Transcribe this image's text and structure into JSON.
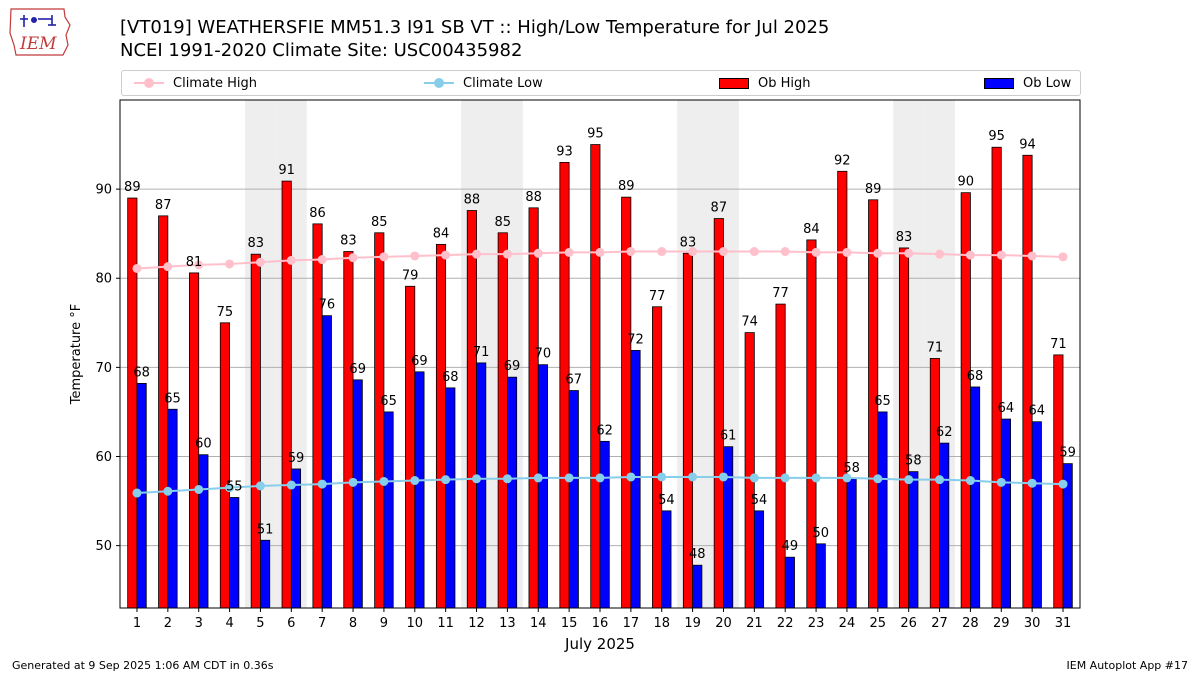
{
  "header": {
    "logo_text": "IEM",
    "title_line1": "[VT019] WEATHERSFIE MM51.3 I91 SB  VT :: High/Low Temperature for Jul 2025",
    "title_line2": "NCEI 1991-2020 Climate Site: USC00435982"
  },
  "legend": {
    "climate_high": "Climate High",
    "climate_low": "Climate Low",
    "ob_high": "Ob High",
    "ob_low": "Ob Low"
  },
  "footer": {
    "generated": "Generated at 9 Sep 2025 1:06 AM CDT in 0.36s",
    "app": "IEM Autoplot App #17"
  },
  "colors": {
    "ob_high": "#ff0000",
    "ob_low": "#0000ff",
    "climate_high": "#ffc0cb",
    "climate_low": "#87ceeb",
    "weekend_shade": "#eeeeee",
    "grid": "#b0b0b0"
  },
  "chart_data": {
    "type": "bar",
    "title": "[VT019] WEATHERSFIE MM51.3 I91 SB  VT :: High/Low Temperature for Jul 2025",
    "subtitle": "NCEI 1991-2020 Climate Site: USC00435982",
    "xlabel": "July 2025",
    "ylabel": "Temperature °F",
    "categories": [
      "1",
      "2",
      "3",
      "4",
      "5",
      "6",
      "7",
      "8",
      "9",
      "10",
      "11",
      "12",
      "13",
      "14",
      "15",
      "16",
      "17",
      "18",
      "19",
      "20",
      "21",
      "22",
      "23",
      "24",
      "25",
      "26",
      "27",
      "28",
      "29",
      "30",
      "31"
    ],
    "ylim": [
      43,
      100
    ],
    "yticks": [
      50,
      60,
      70,
      80,
      90
    ],
    "grid": "horizontal",
    "shaded_days": [
      5,
      6,
      12,
      13,
      19,
      20,
      26,
      27
    ],
    "legend_position": "top",
    "series": [
      {
        "name": "Ob High",
        "kind": "bar",
        "values": [
          89,
          87,
          81,
          75,
          83,
          91,
          86,
          83,
          85,
          79,
          84,
          88,
          85,
          88,
          93,
          95,
          89,
          77,
          83,
          87,
          74,
          77,
          84,
          92,
          89,
          83,
          71,
          90,
          95,
          94,
          71
        ],
        "plot_values": [
          89.0,
          87.0,
          80.6,
          75.0,
          82.7,
          90.9,
          86.1,
          83.0,
          85.1,
          79.1,
          83.8,
          87.6,
          85.1,
          87.9,
          93.0,
          95.0,
          89.1,
          76.8,
          82.8,
          86.7,
          73.9,
          77.1,
          84.3,
          92.0,
          88.8,
          83.4,
          71.0,
          89.6,
          94.7,
          93.8,
          71.4
        ]
      },
      {
        "name": "Ob Low",
        "kind": "bar",
        "values": [
          68,
          65,
          60,
          55,
          51,
          59,
          76,
          69,
          65,
          69,
          68,
          71,
          69,
          70,
          67,
          62,
          72,
          54,
          48,
          61,
          54,
          49,
          50,
          58,
          65,
          58,
          62,
          68,
          64,
          64,
          59
        ],
        "plot_values": [
          68.2,
          65.3,
          60.2,
          55.4,
          50.6,
          58.6,
          75.8,
          68.6,
          65.0,
          69.5,
          67.7,
          70.5,
          68.9,
          70.3,
          67.4,
          61.7,
          71.9,
          53.9,
          47.8,
          61.1,
          53.9,
          48.7,
          50.2,
          57.5,
          65.0,
          58.3,
          61.5,
          67.8,
          64.2,
          63.9,
          59.2
        ]
      },
      {
        "name": "Climate High",
        "kind": "line",
        "values": [
          81.1,
          81.3,
          81.5,
          81.6,
          81.8,
          82.0,
          82.1,
          82.3,
          82.4,
          82.5,
          82.6,
          82.7,
          82.7,
          82.8,
          82.9,
          82.9,
          83.0,
          83.0,
          83.0,
          83.0,
          83.0,
          83.0,
          82.9,
          82.9,
          82.8,
          82.8,
          82.7,
          82.6,
          82.6,
          82.5,
          82.4
        ]
      },
      {
        "name": "Climate Low",
        "kind": "line",
        "values": [
          55.9,
          56.1,
          56.3,
          56.5,
          56.7,
          56.8,
          56.9,
          57.1,
          57.2,
          57.3,
          57.4,
          57.5,
          57.5,
          57.6,
          57.6,
          57.6,
          57.7,
          57.7,
          57.7,
          57.7,
          57.6,
          57.6,
          57.6,
          57.6,
          57.5,
          57.4,
          57.4,
          57.3,
          57.1,
          57.0,
          56.9
        ]
      }
    ]
  }
}
